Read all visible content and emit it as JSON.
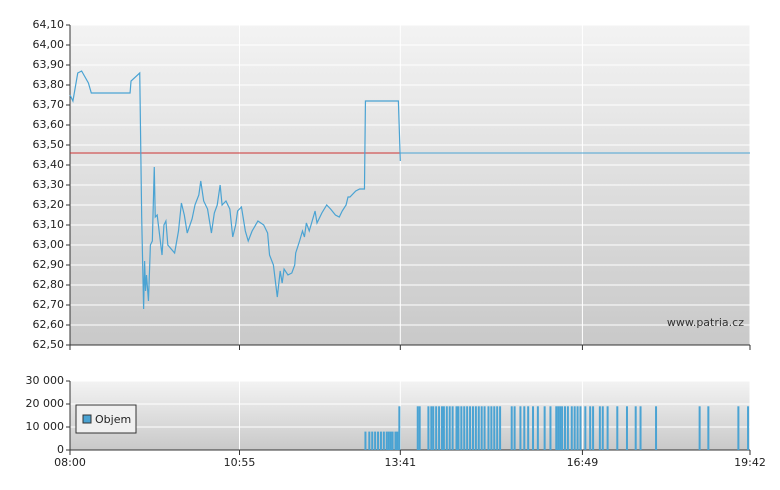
{
  "chart_data": [
    {
      "type": "line",
      "watermark": "www.patria.cz",
      "grid": true,
      "x": [
        480,
        483,
        488,
        492,
        499,
        502,
        542,
        543,
        552,
        554,
        556,
        557,
        558,
        559,
        561,
        563,
        565,
        567,
        568,
        570,
        573,
        575,
        577,
        579,
        581,
        588,
        592,
        595,
        598,
        601,
        606,
        609,
        613,
        615,
        618,
        622,
        626,
        629,
        632,
        635,
        637,
        641,
        645,
        648,
        651,
        653,
        657,
        661,
        664,
        668,
        674,
        680,
        684,
        686,
        690,
        694,
        697,
        699,
        701,
        705,
        709,
        712,
        713,
        717,
        720,
        722,
        724,
        727,
        730,
        733,
        735,
        740,
        745,
        749,
        754,
        758,
        761,
        765,
        767,
        769,
        775,
        779,
        784,
        785,
        819,
        821
      ],
      "series": [
        {
          "color": "#4aa3d3",
          "values": [
            63.75,
            63.72,
            63.86,
            63.87,
            63.81,
            63.76,
            63.76,
            63.82,
            63.86,
            63.14,
            62.68,
            62.92,
            62.77,
            62.85,
            62.72,
            63.0,
            63.02,
            63.39,
            63.14,
            63.15,
            63.03,
            62.95,
            63.1,
            63.12,
            63.0,
            62.96,
            63.07,
            63.21,
            63.15,
            63.06,
            63.13,
            63.2,
            63.25,
            63.32,
            63.22,
            63.18,
            63.06,
            63.16,
            63.2,
            63.3,
            63.2,
            63.22,
            63.18,
            63.04,
            63.1,
            63.17,
            63.19,
            63.07,
            63.02,
            63.07,
            63.12,
            63.1,
            63.06,
            62.95,
            62.9,
            62.74,
            62.87,
            62.81,
            62.88,
            62.85,
            62.86,
            62.9,
            62.96,
            63.02,
            63.07,
            63.04,
            63.11,
            63.07,
            63.12,
            63.17,
            63.11,
            63.16,
            63.2,
            63.18,
            63.15,
            63.14,
            63.17,
            63.2,
            63.24,
            63.24,
            63.27,
            63.28,
            63.28,
            63.72,
            63.72,
            63.42
          ]
        }
      ],
      "reference_line": {
        "value": 63.46,
        "color": "#cc3333"
      },
      "xlim": [
        480,
        1182
      ],
      "xticks": [
        480,
        655,
        821,
        1009,
        1182
      ],
      "ylim": [
        62.5,
        64.1
      ],
      "yticks": [
        {
          "value": 62.5,
          "label": "62,50"
        },
        {
          "value": 62.6,
          "label": "62,60"
        },
        {
          "value": 62.7,
          "label": "62,70"
        },
        {
          "value": 62.8,
          "label": "62,80"
        },
        {
          "value": 62.9,
          "label": "62,90"
        },
        {
          "value": 63.0,
          "label": "63,00"
        },
        {
          "value": 63.1,
          "label": "63,10"
        },
        {
          "value": 63.2,
          "label": "63,20"
        },
        {
          "value": 63.3,
          "label": "63,30"
        },
        {
          "value": 63.4,
          "label": "63,40"
        },
        {
          "value": 63.5,
          "label": "63,50"
        },
        {
          "value": 63.6,
          "label": "63,60"
        },
        {
          "value": 63.7,
          "label": "63,70"
        },
        {
          "value": 63.8,
          "label": "63,80"
        },
        {
          "value": 63.9,
          "label": "63,90"
        },
        {
          "value": 64.0,
          "label": "64,00"
        },
        {
          "value": 64.1,
          "label": "64,10"
        }
      ]
    },
    {
      "type": "bar",
      "grid": true,
      "legend": "top-left",
      "x": [
        785,
        789,
        792,
        795,
        798,
        801,
        804,
        807,
        809,
        811,
        813,
        816,
        818,
        820,
        839,
        841,
        850,
        853,
        855,
        858,
        861,
        864,
        866,
        869,
        872,
        875,
        879,
        881,
        884,
        887,
        890,
        893,
        896,
        899,
        902,
        905,
        908,
        912,
        915,
        918,
        921,
        924,
        936,
        939,
        945,
        949,
        953,
        958,
        963,
        970,
        976,
        982,
        984,
        986,
        988,
        991,
        994,
        998,
        1001,
        1004,
        1007,
        1012,
        1017,
        1020,
        1027,
        1030,
        1035,
        1045,
        1055,
        1064,
        1069,
        1085,
        1130,
        1139,
        1170,
        1180
      ],
      "series": [
        {
          "name": "Objem",
          "color": "#4aa3d3",
          "values": [
            8000,
            8000,
            8000,
            8000,
            8000,
            8000,
            8000,
            8000,
            8000,
            8000,
            8000,
            8000,
            8000,
            19000,
            19000,
            19000,
            19000,
            19000,
            19000,
            19000,
            19000,
            19000,
            19000,
            19000,
            19000,
            19000,
            19000,
            19000,
            19000,
            19000,
            19000,
            19000,
            19000,
            19000,
            19000,
            19000,
            19000,
            19000,
            19000,
            19000,
            19000,
            19000,
            19000,
            19000,
            19000,
            19000,
            19000,
            19000,
            19000,
            19000,
            19000,
            19000,
            19000,
            19000,
            19000,
            19000,
            19000,
            19000,
            19000,
            19000,
            19000,
            19000,
            19000,
            19000,
            19000,
            19000,
            19000,
            19000,
            19000,
            19000,
            19000,
            19000,
            19000,
            19000,
            19000,
            19000
          ]
        }
      ],
      "xlim": [
        480,
        1182
      ],
      "xticks": [
        {
          "value": 480,
          "label": "08:00"
        },
        {
          "value": 655,
          "label": "10:55"
        },
        {
          "value": 821,
          "label": "13:41"
        },
        {
          "value": 1009,
          "label": "16:49"
        },
        {
          "value": 1182,
          "label": "19:42"
        }
      ],
      "ylim": [
        0,
        30000
      ],
      "yticks": [
        0,
        {
          "value": 10000,
          "label": "10 000"
        },
        {
          "value": 20000,
          "label": "20 000"
        },
        {
          "value": 30000,
          "label": "30 000"
        }
      ]
    }
  ]
}
